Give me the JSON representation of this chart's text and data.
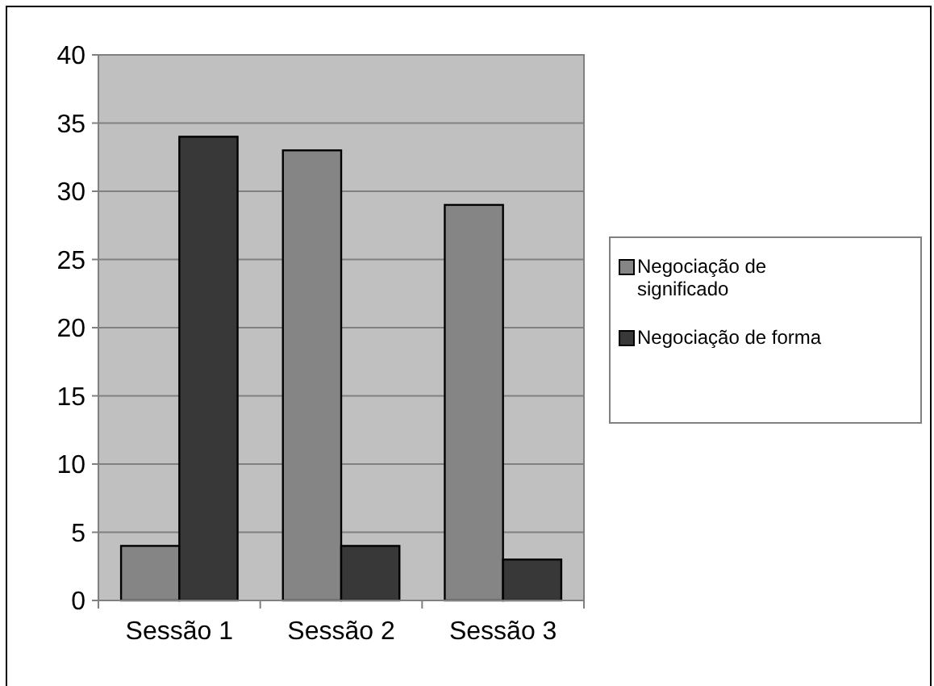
{
  "chart_data": {
    "type": "bar",
    "categories": [
      "Sessão 1",
      "Sessão 2",
      "Sessão 3"
    ],
    "series": [
      {
        "name": "Negociação de significado",
        "color": "#858585",
        "values": [
          4,
          33,
          29
        ]
      },
      {
        "name": "Negociação de forma",
        "color": "#383838",
        "values": [
          34,
          4,
          3
        ]
      }
    ],
    "ylim": [
      0,
      40
    ],
    "yticks": [
      0,
      5,
      10,
      15,
      20,
      25,
      30,
      35,
      40
    ],
    "grid": "y",
    "legend": "right"
  }
}
